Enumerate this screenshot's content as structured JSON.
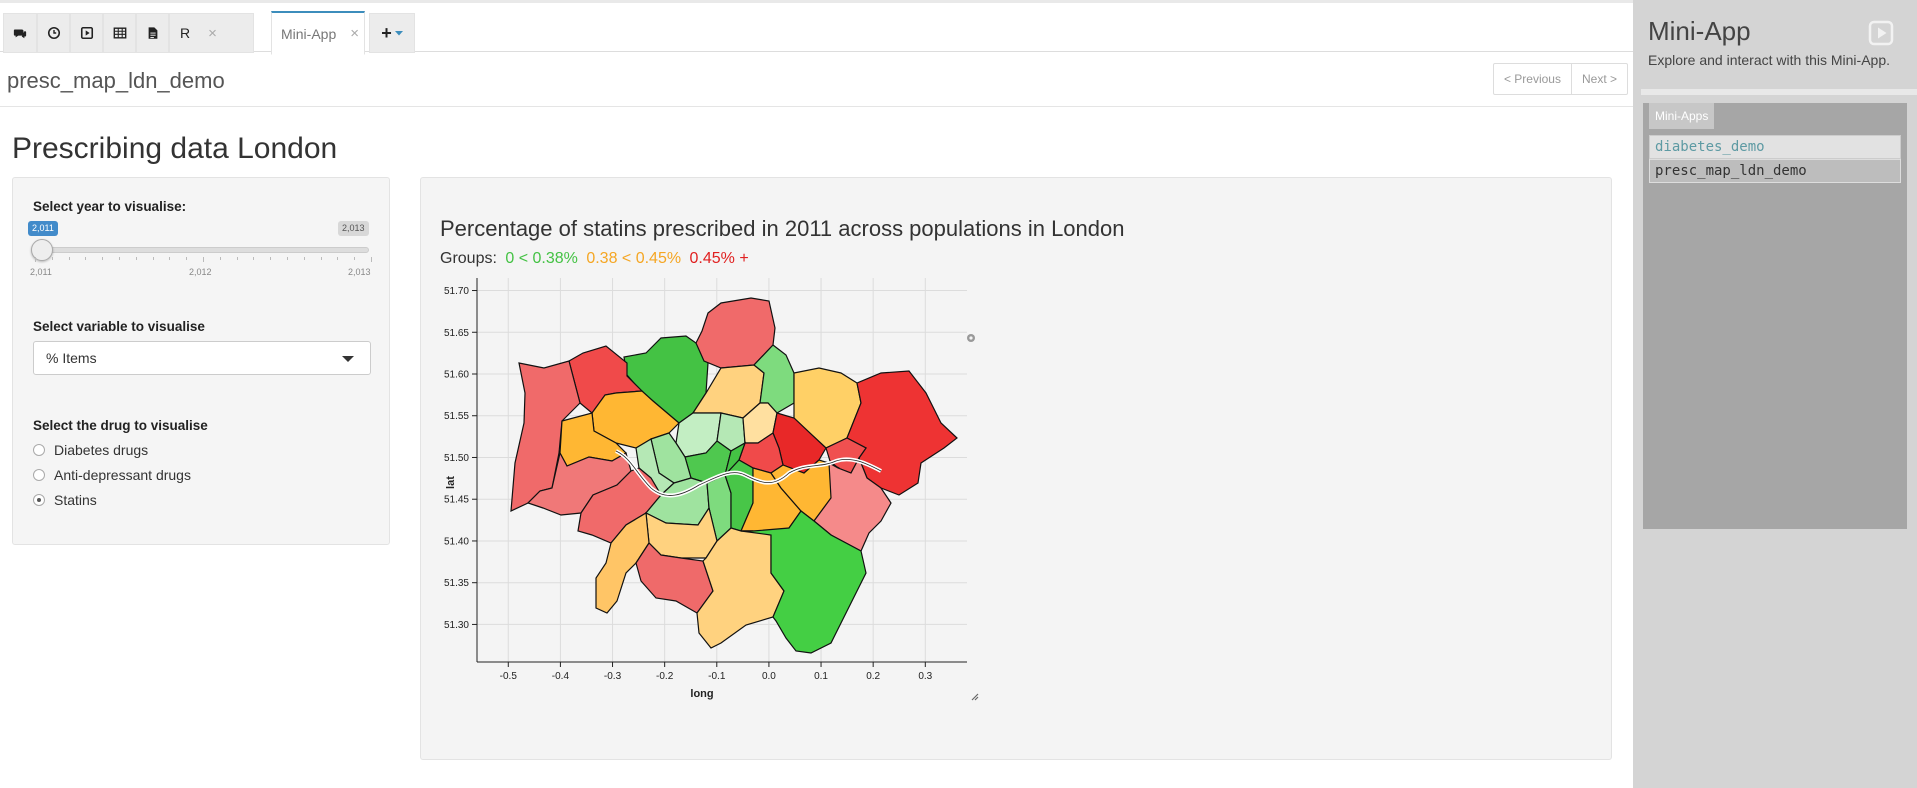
{
  "tabs": {
    "r_label": "R",
    "close_glyph": "×",
    "active_label": "Mini-App",
    "plus_glyph": "+"
  },
  "page": {
    "app_name": "presc_map_ldn_demo",
    "prev_label": "< Previous",
    "next_label": "Next >",
    "heading": "Prescribing data London"
  },
  "controls": {
    "year_label": "Select year to visualise:",
    "year_from": "2,011",
    "year_to": "2,013",
    "year_ticks": [
      "2,011",
      "2,012",
      "2,013"
    ],
    "year_value": 2011,
    "variable_label": "Select variable to visualise",
    "variable_selected": "% Items",
    "drug_label": "Select the drug to visualise",
    "drugs": [
      {
        "label": "Diabetes drugs",
        "checked": false
      },
      {
        "label": "Anti-depressant drugs",
        "checked": false
      },
      {
        "label": "Statins",
        "checked": true
      }
    ]
  },
  "map": {
    "title": "Percentage of statins prescribed in 2011 across populations in London",
    "groups_label": "Groups:",
    "group_low": "0 < 0.38%",
    "group_mid": "0.38 < 0.45%",
    "group_high": "0.45% +",
    "colors": {
      "low": "#44c244",
      "mid": "#f5a623",
      "high": "#e02020",
      "low_light": "#9fe39f",
      "mid_light": "#ffd27f",
      "high_light": "#f08080"
    },
    "x_axis_label": "long",
    "y_axis_label": "lat",
    "x_ticks": [
      "-0.5",
      "-0.4",
      "-0.3",
      "-0.2",
      "-0.1",
      "0.0",
      "0.1",
      "0.2",
      "0.3"
    ],
    "y_ticks": [
      "51.70",
      "51.65",
      "51.60",
      "51.55",
      "51.50",
      "51.45",
      "51.40",
      "51.35",
      "51.30"
    ]
  },
  "sidebar": {
    "title": "Mini-App",
    "description": "Explore and interact with this Mini-App.",
    "tab_label": "Mini-Apps",
    "apps": [
      "diabetes_demo",
      "presc_map_ldn_demo"
    ]
  }
}
